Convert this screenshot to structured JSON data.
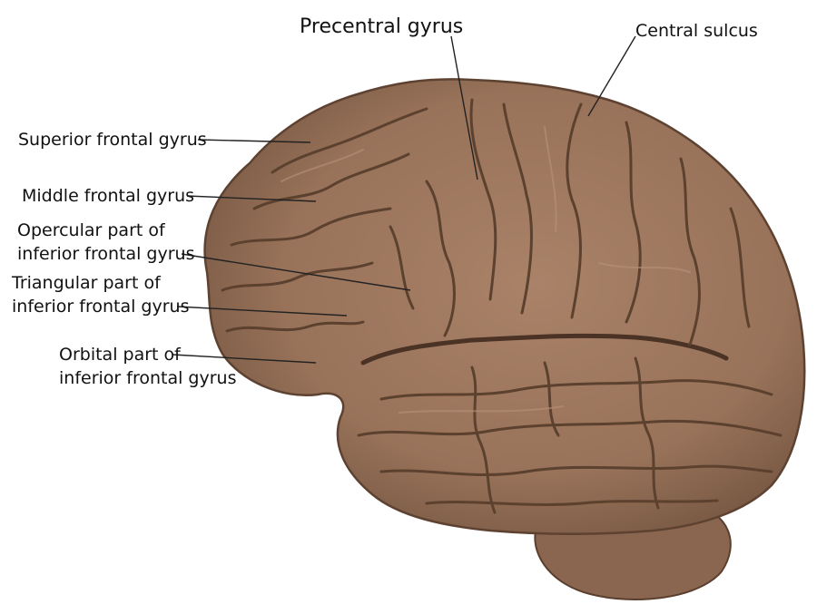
{
  "labels": {
    "precentral": "Precentral gyrus",
    "central": "Central sulcus",
    "superior": "Superior frontal gyrus",
    "middle": "Middle frontal gyrus",
    "opercular_1": "Opercular part of",
    "opercular_2": "inferior frontal gyrus",
    "triangular_1": "Triangular part of",
    "triangular_2": "inferior frontal gyrus",
    "orbital_1": "Orbital part of",
    "orbital_2": "inferior frontal gyrus"
  },
  "colors": {
    "brain": "#9c765d",
    "brain_dark": "#6d4f3b",
    "brain_light": "#b8917a",
    "background": "#ffffff",
    "leader": "#222222"
  }
}
